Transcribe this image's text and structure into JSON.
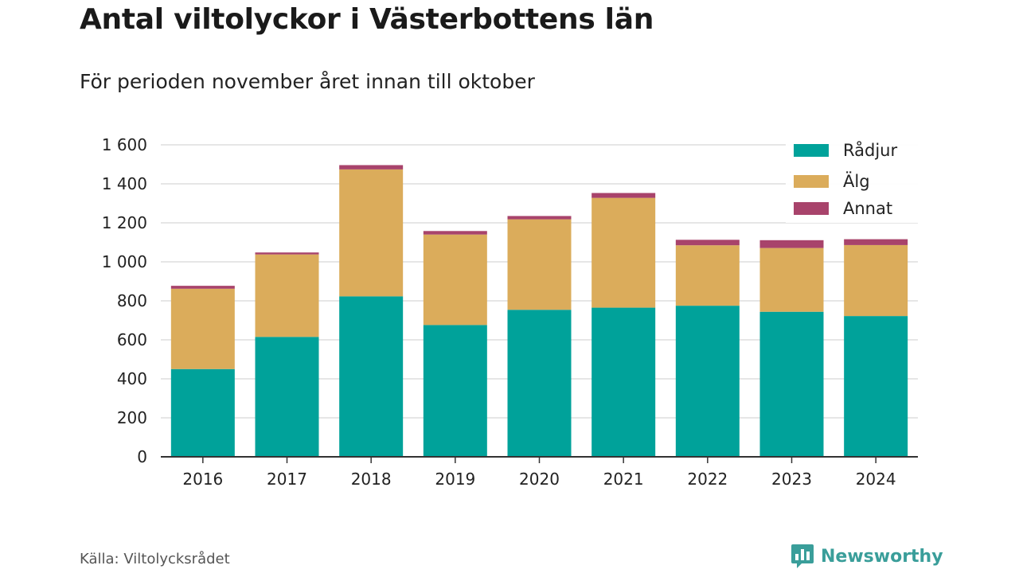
{
  "header": {
    "title": "Antal viltolyckor i Västerbottens län",
    "subtitle": "För perioden november året innan till oktober"
  },
  "footer": {
    "source": "Källa: Viltolycksrådet",
    "brand": "Newsworthy",
    "brand_color": "#3a9e9a",
    "brand_icon": "bar-chart-speech-bubble-icon"
  },
  "chart_data": {
    "type": "bar",
    "stacked": true,
    "title": "Antal viltolyckor i Västerbottens län",
    "subtitle": "För perioden november året innan till oktober",
    "xlabel": "",
    "ylabel": "",
    "ylim": [
      0,
      1600
    ],
    "yticks": [
      0,
      200,
      400,
      600,
      800,
      1000,
      1200,
      1400,
      1600
    ],
    "ytick_labels": [
      "0",
      "200",
      "400",
      "600",
      "800",
      "1 000",
      "1 200",
      "1 400",
      "1 600"
    ],
    "grid": true,
    "legend": "top-right",
    "categories": [
      "2016",
      "2017",
      "2018",
      "2019",
      "2020",
      "2021",
      "2022",
      "2023",
      "2024"
    ],
    "series": [
      {
        "name": "Rådjur",
        "color": "#00a29a",
        "values": [
          450,
          615,
          823,
          676,
          754,
          765,
          775,
          744,
          722
        ]
      },
      {
        "name": "Älg",
        "color": "#dbac5b",
        "values": [
          412,
          423,
          651,
          464,
          464,
          563,
          310,
          327,
          364
        ]
      },
      {
        "name": "Annat",
        "color": "#a8436b",
        "values": [
          15,
          10,
          22,
          18,
          17,
          25,
          28,
          40,
          30
        ]
      }
    ]
  }
}
